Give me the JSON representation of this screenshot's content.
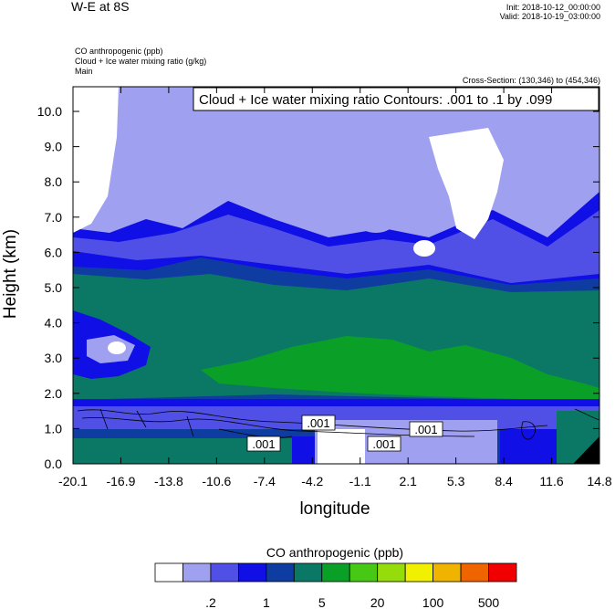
{
  "header": {
    "title": "W-E at 8S",
    "init": "Init: 2018-10-12_00:00:00",
    "valid": "Valid: 2018-10-19_03:00:00",
    "fields": [
      "CO anthropogenic   (ppb)",
      "Cloud + Ice water mixing ratio   (g/kg)",
      "Main"
    ],
    "cross_section": "Cross-Section: (130,346) to (454,346)"
  },
  "chart_data": {
    "type": "heatmap",
    "title": "Cloud + Ice water mixing ratio Contours: .001 to .1 by .099",
    "xlabel": "longitude",
    "ylabel": "Height (km)",
    "x_ticks": [
      "-20.1",
      "-16.9",
      "-13.8",
      "-10.6",
      "-7.4",
      "-4.2",
      "-1.1",
      "2.1",
      "5.3",
      "8.4",
      "11.6",
      "14.8"
    ],
    "y_ticks": [
      "0.0",
      "1.0",
      "2.0",
      "3.0",
      "4.0",
      "5.0",
      "6.0",
      "7.0",
      "8.0",
      "9.0",
      "10.0"
    ],
    "xlim": [
      -20.1,
      14.8
    ],
    "ylim": [
      0,
      10.7
    ],
    "contour_labels": [
      ".001",
      ".001",
      ".001",
      ".001"
    ],
    "colorbar": {
      "title": "CO anthropogenic  (ppb)",
      "colors": [
        "#ffffff",
        "#a0a0f0",
        "#5050e6",
        "#0f0fe6",
        "#0f3ca0",
        "#0a7865",
        "#0aa028",
        "#46c814",
        "#96dc0a",
        "#f0f000",
        "#f0b400",
        "#f06400",
        "#f00000"
      ],
      "labels": [
        ".2",
        "1",
        "5",
        "20",
        "100",
        "500"
      ]
    }
  }
}
